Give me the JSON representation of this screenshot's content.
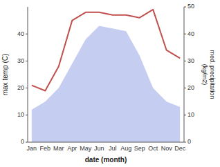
{
  "chart_data": {
    "type": "area",
    "categories": [
      "Jan",
      "Feb",
      "Mar",
      "Apr",
      "May",
      "Jun",
      "Jul",
      "Aug",
      "Sep",
      "Oct",
      "Nov",
      "Dec"
    ],
    "series": [
      {
        "type": "area",
        "color": "#c5cdf0",
        "values": [
          12,
          15,
          20,
          29,
          38,
          43,
          42,
          41,
          32,
          20,
          15,
          13
        ]
      },
      {
        "type": "line",
        "color": "#c0504d",
        "axis": "y2",
        "values": [
          21,
          19,
          28,
          45,
          48,
          48,
          47,
          47,
          46,
          49,
          34,
          31
        ]
      }
    ],
    "x_label": "date (month)",
    "y_label": "max temp (C)",
    "y2_label": "med. precipitation\n(kg/m2)",
    "ylim": [
      0,
      50
    ],
    "yticks": [
      0,
      10,
      20,
      30,
      40
    ],
    "y2lim": [
      0,
      50
    ],
    "y2ticks": [
      0,
      10,
      20,
      30,
      40,
      50
    ],
    "grid": false
  }
}
